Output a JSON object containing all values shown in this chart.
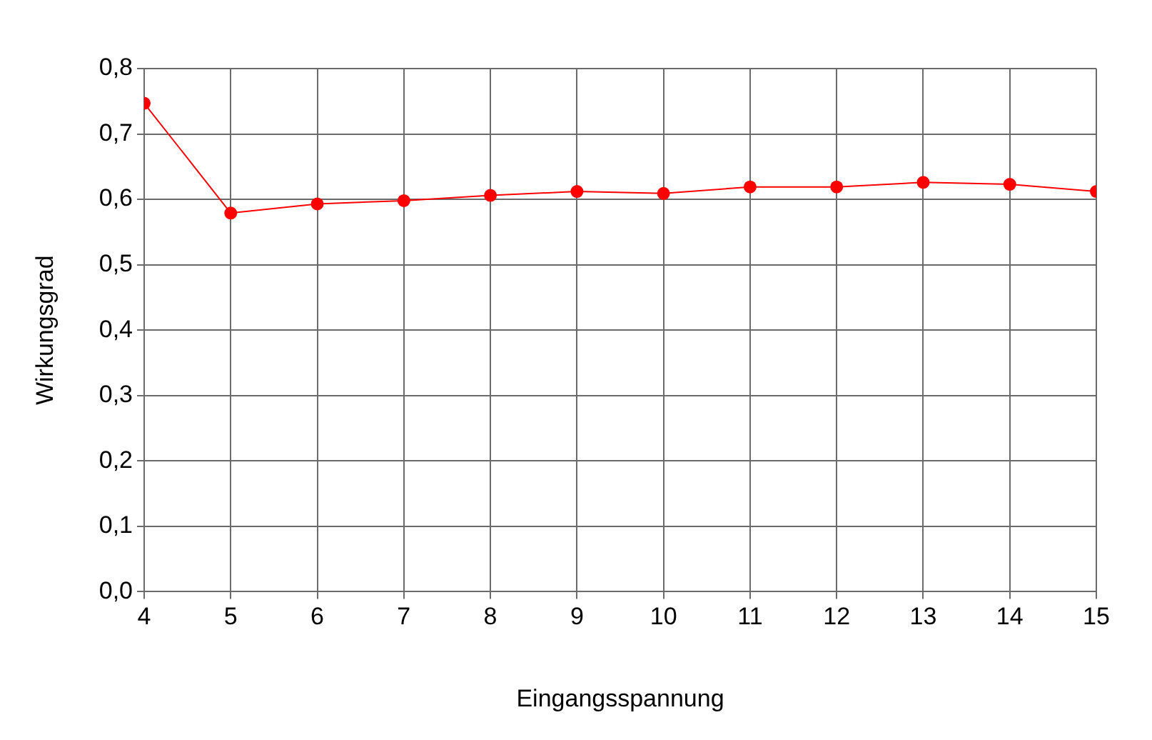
{
  "chart_data": {
    "type": "line",
    "xlabel": "Eingangsspannung",
    "ylabel": "Wirkungsgrad",
    "x": [
      4,
      5,
      6,
      7,
      8,
      9,
      10,
      11,
      12,
      13,
      14,
      15
    ],
    "series": [
      {
        "color": "#ff0000",
        "values": [
          0.747,
          0.579,
          0.593,
          0.598,
          0.606,
          0.612,
          0.609,
          0.619,
          0.619,
          0.626,
          0.623,
          0.612
        ]
      }
    ],
    "xlim": [
      4,
      15
    ],
    "xticks": [
      4,
      5,
      6,
      7,
      8,
      9,
      10,
      11,
      12,
      13,
      14,
      15
    ],
    "ylim": [
      0,
      0.8
    ],
    "yticks": [
      {
        "value": 0,
        "label": "0,0"
      },
      {
        "value": 0.1,
        "label": "0,1"
      },
      {
        "value": 0.2,
        "label": "0,2"
      },
      {
        "value": 0.3,
        "label": "0,3"
      },
      {
        "value": 0.4,
        "label": "0,4"
      },
      {
        "value": 0.5,
        "label": "0,5"
      },
      {
        "value": 0.6,
        "label": "0,6"
      },
      {
        "value": 0.7,
        "label": "0,7"
      },
      {
        "value": 0.8,
        "label": "0,8"
      }
    ],
    "grid": true,
    "legend": false,
    "marker": "circle",
    "line_style": "solid"
  }
}
